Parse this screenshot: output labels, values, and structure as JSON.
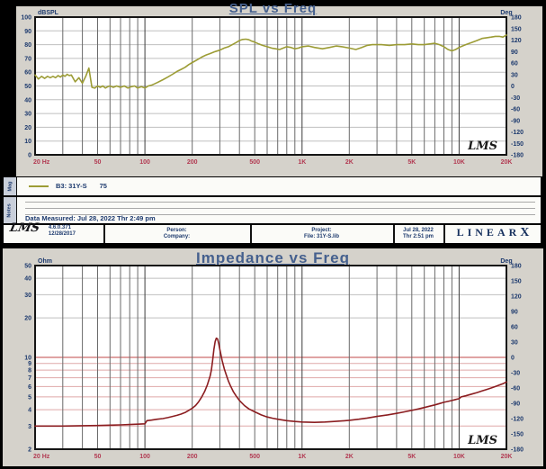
{
  "page": {
    "bg": "#D5D2CB"
  },
  "colors": {
    "navy": "#1D3A6E",
    "red": "#B23A52",
    "title": "#45608E",
    "grid_v": "#6A6A6A",
    "grid_v_decade": "#3C3C3C",
    "grid_h": "#BFBFBF",
    "grid_pink": "#DFA8A8",
    "grid_red": "#C24848",
    "border": "#151515",
    "spl_curve": "#9C9C35",
    "imp_curve": "#8B1D20"
  },
  "legend_row": {
    "side": "Mag",
    "series": "B3: 31Y-S",
    "value": "75"
  },
  "notes_row": {
    "side": "Notes",
    "text": "Data Measured: Jul 28, 2022  Thr  2:49 pm"
  },
  "footer": {
    "logo": "LMS",
    "version": "4.6.0.371",
    "version_date": "12/28/2017",
    "person": "Person:",
    "company": "Company:",
    "project": "Project:",
    "file": "File: 31Y-S.lib",
    "date1": "Jul 28, 2022",
    "date2": "Thr  2:51 pm",
    "brand": "LINEAR",
    "brand_x": "X"
  },
  "chart_data": [
    {
      "type": "line",
      "title": "SPL vs Freq",
      "ylabel_left": "dBSPL",
      "ylabel_right": "Deg",
      "logo": "LMS",
      "xscale": "log",
      "yscale": "lin",
      "xlim": [
        20,
        20000
      ],
      "ylim": [
        0,
        100
      ],
      "y_left_ticks": [
        100,
        90,
        80,
        70,
        60,
        50,
        40,
        30,
        20,
        10,
        0
      ],
      "y_right_ticks": [
        180,
        150,
        120,
        90,
        60,
        30,
        0,
        -30,
        -60,
        -90,
        -120,
        -150,
        -180
      ],
      "x_ticks": [
        {
          "f": 20,
          "label": "20 Hz"
        },
        {
          "f": 50,
          "label": "50"
        },
        {
          "f": 100,
          "label": "100"
        },
        {
          "f": 200,
          "label": "200"
        },
        {
          "f": 500,
          "label": "500"
        },
        {
          "f": 1000,
          "label": "1K"
        },
        {
          "f": 2000,
          "label": "2K"
        },
        {
          "f": 5000,
          "label": "5K"
        },
        {
          "f": 10000,
          "label": "10K"
        },
        {
          "f": 20000,
          "label": "20K"
        }
      ],
      "series": [
        {
          "name": "B3: 31Y-S 75",
          "color": "#9C9C35",
          "points": [
            [
              20,
              58
            ],
            [
              21,
              55
            ],
            [
              22,
              57
            ],
            [
              23,
              55.5
            ],
            [
              24,
              57
            ],
            [
              25,
              56
            ],
            [
              26,
              57
            ],
            [
              27,
              56
            ],
            [
              28,
              57.5
            ],
            [
              29,
              56.5
            ],
            [
              30,
              58
            ],
            [
              31,
              57
            ],
            [
              32,
              58.5
            ],
            [
              33,
              57.5
            ],
            [
              34,
              58
            ],
            [
              36,
              53
            ],
            [
              38,
              56
            ],
            [
              40,
              52
            ],
            [
              42,
              57
            ],
            [
              44,
              63
            ],
            [
              46,
              49
            ],
            [
              48,
              48.5
            ],
            [
              50,
              50
            ],
            [
              52,
              49
            ],
            [
              54,
              50
            ],
            [
              56,
              48.5
            ],
            [
              58,
              49.5
            ],
            [
              60,
              50
            ],
            [
              63,
              49
            ],
            [
              66,
              50
            ],
            [
              70,
              49
            ],
            [
              74,
              50
            ],
            [
              78,
              48.5
            ],
            [
              82,
              49.5
            ],
            [
              86,
              50
            ],
            [
              90,
              48.5
            ],
            [
              95,
              49.5
            ],
            [
              100,
              48.5
            ],
            [
              105,
              50
            ],
            [
              110,
              50.5
            ],
            [
              115,
              51.5
            ],
            [
              120,
              52.5
            ],
            [
              130,
              54.5
            ],
            [
              140,
              56.5
            ],
            [
              150,
              58.5
            ],
            [
              160,
              60.5
            ],
            [
              170,
              62
            ],
            [
              180,
              63.5
            ],
            [
              190,
              65.5
            ],
            [
              200,
              67
            ],
            [
              215,
              69
            ],
            [
              230,
              71
            ],
            [
              245,
              72.5
            ],
            [
              260,
              73.5
            ],
            [
              280,
              75
            ],
            [
              300,
              76
            ],
            [
              320,
              77.5
            ],
            [
              340,
              78.5
            ],
            [
              360,
              80
            ],
            [
              380,
              81.5
            ],
            [
              400,
              83
            ],
            [
              420,
              83.8
            ],
            [
              440,
              84
            ],
            [
              460,
              83.5
            ],
            [
              480,
              82.5
            ],
            [
              500,
              81.8
            ],
            [
              530,
              80.5
            ],
            [
              560,
              79.5
            ],
            [
              600,
              78.5
            ],
            [
              640,
              77.5
            ],
            [
              680,
              77
            ],
            [
              720,
              76.5
            ],
            [
              760,
              77.5
            ],
            [
              800,
              78.5
            ],
            [
              850,
              78
            ],
            [
              900,
              77
            ],
            [
              950,
              77.5
            ],
            [
              1000,
              78.5
            ],
            [
              1100,
              79
            ],
            [
              1200,
              78
            ],
            [
              1350,
              77
            ],
            [
              1500,
              78
            ],
            [
              1650,
              79
            ],
            [
              1800,
              78.5
            ],
            [
              2000,
              77.5
            ],
            [
              2200,
              76.5
            ],
            [
              2400,
              78
            ],
            [
              2600,
              79.5
            ],
            [
              2800,
              80
            ],
            [
              3200,
              80
            ],
            [
              3600,
              79.5
            ],
            [
              4000,
              80
            ],
            [
              4500,
              80
            ],
            [
              5000,
              80.5
            ],
            [
              5500,
              80
            ],
            [
              6000,
              80
            ],
            [
              6500,
              80.5
            ],
            [
              7000,
              81
            ],
            [
              7500,
              80
            ],
            [
              8000,
              78.5
            ],
            [
              8500,
              76.5
            ],
            [
              9000,
              75.5
            ],
            [
              9500,
              76.5
            ],
            [
              10000,
              78
            ],
            [
              11000,
              80
            ],
            [
              12000,
              81.5
            ],
            [
              13000,
              83
            ],
            [
              14000,
              84.5
            ],
            [
              15000,
              85
            ],
            [
              16000,
              85.5
            ],
            [
              17000,
              86
            ],
            [
              18000,
              86
            ],
            [
              19000,
              85.5
            ],
            [
              20000,
              87
            ]
          ]
        }
      ]
    },
    {
      "type": "line",
      "title": "Impedance vs Freq",
      "ylabel_left": "Ohm",
      "ylabel_right": "Deg",
      "logo": "LMS",
      "xscale": "log",
      "yscale": "log",
      "xlim": [
        20,
        20000
      ],
      "ylim": [
        2,
        50
      ],
      "y_left_ticks": [
        50,
        40,
        30,
        20,
        10,
        9,
        8,
        7,
        6,
        5,
        4,
        3,
        2
      ],
      "y_right_ticks": [
        180,
        150,
        120,
        90,
        60,
        30,
        0,
        -30,
        -60,
        -90,
        -120,
        -150,
        -180
      ],
      "x_ticks": [
        {
          "f": 20,
          "label": "20 Hz"
        },
        {
          "f": 50,
          "label": "50"
        },
        {
          "f": 100,
          "label": "100"
        },
        {
          "f": 200,
          "label": "200"
        },
        {
          "f": 500,
          "label": "500"
        },
        {
          "f": 1000,
          "label": "1K"
        },
        {
          "f": 2000,
          "label": "2K"
        },
        {
          "f": 5000,
          "label": "5K"
        },
        {
          "f": 10000,
          "label": "10K"
        },
        {
          "f": 20000,
          "label": "20K"
        }
      ],
      "series": [
        {
          "name": "Impedance",
          "color": "#8B1D20",
          "points": [
            [
              20,
              3.0
            ],
            [
              30,
              3.0
            ],
            [
              40,
              3.02
            ],
            [
              50,
              3.03
            ],
            [
              60,
              3.05
            ],
            [
              70,
              3.06
            ],
            [
              80,
              3.08
            ],
            [
              90,
              3.1
            ],
            [
              100,
              3.12
            ],
            [
              103,
              3.3
            ],
            [
              110,
              3.33
            ],
            [
              120,
              3.38
            ],
            [
              130,
              3.42
            ],
            [
              140,
              3.48
            ],
            [
              150,
              3.55
            ],
            [
              160,
              3.62
            ],
            [
              170,
              3.7
            ],
            [
              180,
              3.8
            ],
            [
              190,
              3.95
            ],
            [
              200,
              4.1
            ],
            [
              210,
              4.3
            ],
            [
              220,
              4.6
            ],
            [
              230,
              5.0
            ],
            [
              240,
              5.5
            ],
            [
              250,
              6.2
            ],
            [
              260,
              7.2
            ],
            [
              265,
              8.0
            ],
            [
              270,
              9.5
            ],
            [
              275,
              11.5
            ],
            [
              280,
              13.2
            ],
            [
              285,
              14.0
            ],
            [
              290,
              13.8
            ],
            [
              295,
              12.8
            ],
            [
              300,
              11.5
            ],
            [
              310,
              9.5
            ],
            [
              320,
              8.2
            ],
            [
              330,
              7.3
            ],
            [
              340,
              6.6
            ],
            [
              350,
              6.1
            ],
            [
              365,
              5.5
            ],
            [
              380,
              5.1
            ],
            [
              400,
              4.7
            ],
            [
              430,
              4.3
            ],
            [
              460,
              4.05
            ],
            [
              500,
              3.85
            ],
            [
              550,
              3.65
            ],
            [
              600,
              3.52
            ],
            [
              650,
              3.44
            ],
            [
              700,
              3.38
            ],
            [
              800,
              3.3
            ],
            [
              900,
              3.25
            ],
            [
              1000,
              3.22
            ],
            [
              1200,
              3.2
            ],
            [
              1400,
              3.22
            ],
            [
              1600,
              3.25
            ],
            [
              1800,
              3.28
            ],
            [
              2000,
              3.32
            ],
            [
              2300,
              3.38
            ],
            [
              2600,
              3.45
            ],
            [
              3000,
              3.55
            ],
            [
              3500,
              3.65
            ],
            [
              4000,
              3.75
            ],
            [
              4500,
              3.85
            ],
            [
              5000,
              3.95
            ],
            [
              5500,
              4.05
            ],
            [
              6000,
              4.15
            ],
            [
              6500,
              4.25
            ],
            [
              7000,
              4.35
            ],
            [
              7500,
              4.45
            ],
            [
              8000,
              4.55
            ],
            [
              8500,
              4.62
            ],
            [
              9000,
              4.7
            ],
            [
              9500,
              4.78
            ],
            [
              10000,
              4.85
            ],
            [
              10300,
              5.0
            ],
            [
              11000,
              5.1
            ],
            [
              12000,
              5.25
            ],
            [
              13000,
              5.4
            ],
            [
              14000,
              5.55
            ],
            [
              15000,
              5.7
            ],
            [
              16000,
              5.85
            ],
            [
              17000,
              6.0
            ],
            [
              18000,
              6.15
            ],
            [
              19000,
              6.3
            ],
            [
              20000,
              6.5
            ]
          ]
        }
      ]
    }
  ]
}
